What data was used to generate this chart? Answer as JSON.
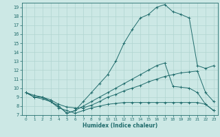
{
  "xlabel": "Humidex (Indice chaleur)",
  "xlim": [
    -0.5,
    23.5
  ],
  "ylim": [
    7,
    19.5
  ],
  "yticks": [
    7,
    8,
    9,
    10,
    11,
    12,
    13,
    14,
    15,
    16,
    17,
    18,
    19
  ],
  "xticks": [
    0,
    1,
    2,
    3,
    4,
    5,
    6,
    7,
    8,
    9,
    10,
    11,
    12,
    13,
    14,
    15,
    16,
    17,
    18,
    19,
    20,
    21,
    22,
    23
  ],
  "bg_color": "#cce8e5",
  "grid_color": "#b0d4d0",
  "line_color": "#1f6b6b",
  "lines": [
    {
      "x": [
        0,
        1,
        2,
        3,
        4,
        5,
        6,
        7,
        8,
        9,
        10,
        11,
        12,
        13,
        14,
        15,
        16,
        17,
        18,
        19,
        20,
        21,
        22,
        23
      ],
      "y": [
        9.5,
        9.0,
        9.0,
        8.5,
        8.0,
        7.2,
        7.5,
        8.5,
        9.5,
        10.5,
        11.5,
        13.0,
        15.0,
        16.5,
        17.8,
        18.2,
        19.0,
        19.3,
        18.5,
        18.2,
        17.8,
        12.5,
        12.2,
        12.5
      ]
    },
    {
      "x": [
        0,
        1,
        2,
        3,
        4,
        5,
        6,
        7,
        8,
        9,
        10,
        11,
        12,
        13,
        14,
        15,
        16,
        17,
        18,
        19,
        20,
        21,
        22,
        23
      ],
      "y": [
        9.5,
        9.0,
        9.0,
        8.5,
        8.0,
        7.2,
        7.5,
        8.0,
        8.5,
        9.0,
        9.5,
        10.0,
        10.5,
        11.0,
        11.5,
        12.0,
        12.5,
        12.8,
        10.2,
        10.1,
        10.0,
        9.5,
        8.2,
        7.5
      ]
    },
    {
      "x": [
        0,
        1,
        2,
        3,
        4,
        5,
        6,
        7,
        8,
        9,
        10,
        11,
        12,
        13,
        14,
        15,
        16,
        17,
        18,
        19,
        20,
        21,
        22,
        23
      ],
      "y": [
        9.5,
        9.0,
        8.8,
        8.5,
        7.8,
        7.5,
        7.2,
        7.5,
        7.8,
        8.0,
        8.2,
        8.3,
        8.4,
        8.4,
        8.4,
        8.4,
        8.4,
        8.4,
        8.4,
        8.4,
        8.4,
        8.4,
        8.2,
        7.5
      ]
    },
    {
      "x": [
        0,
        1,
        2,
        3,
        4,
        5,
        6,
        7,
        8,
        9,
        10,
        11,
        12,
        13,
        14,
        15,
        16,
        17,
        18,
        19,
        20,
        21,
        22,
        23
      ],
      "y": [
        9.5,
        9.2,
        9.0,
        8.7,
        8.2,
        7.9,
        7.8,
        7.8,
        8.1,
        8.5,
        9.0,
        9.3,
        9.7,
        10.0,
        10.3,
        10.7,
        11.0,
        11.3,
        11.5,
        11.7,
        11.8,
        11.9,
        9.5,
        8.5
      ]
    }
  ]
}
